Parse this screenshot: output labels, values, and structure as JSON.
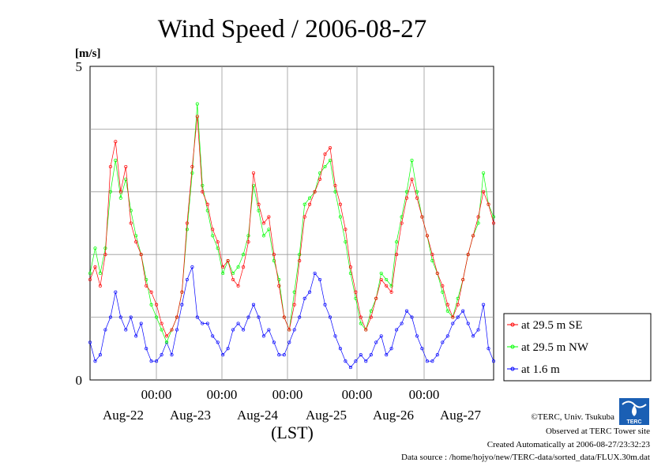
{
  "chart_data": {
    "type": "line",
    "title": "Wind Speed / 2006-08-27",
    "unit_label": "[m/s]",
    "ylim": [
      0,
      5
    ],
    "yticks": [
      "0",
      "5"
    ],
    "ygrid": [
      1,
      2,
      3,
      4
    ],
    "x_time_ticks": [
      "00:00",
      "00:00",
      "00:00",
      "00:00",
      "00:00"
    ],
    "x_day_labels": [
      "Aug-22",
      "Aug-23",
      "Aug-24",
      "Aug-25",
      "Aug-26",
      "Aug-27"
    ],
    "xlabel": "(LST)",
    "grid": true,
    "legend_position": "right",
    "x_step_hours": 2,
    "x_start": "2006-08-21 11:00",
    "x_end": "2006-08-27 23:00",
    "series": [
      {
        "name": "at 29.5 m SE",
        "color": "#ff0000",
        "values": [
          1.6,
          1.8,
          1.5,
          2.0,
          3.4,
          3.8,
          3.0,
          3.4,
          2.5,
          2.2,
          2.0,
          1.5,
          1.4,
          1.2,
          0.9,
          0.7,
          0.8,
          1.0,
          1.4,
          2.5,
          3.4,
          4.2,
          3.0,
          2.8,
          2.4,
          2.2,
          1.8,
          1.9,
          1.6,
          1.5,
          1.8,
          2.2,
          3.3,
          2.8,
          2.5,
          2.6,
          2.0,
          1.5,
          1.0,
          0.8,
          1.2,
          1.9,
          2.6,
          2.8,
          3.0,
          3.2,
          3.6,
          3.7,
          3.1,
          2.8,
          2.4,
          1.8,
          1.4,
          1.0,
          0.8,
          1.0,
          1.3,
          1.6,
          1.5,
          1.4,
          2.0,
          2.5,
          2.9,
          3.2,
          2.9,
          2.6,
          2.3,
          2.0,
          1.7,
          1.5,
          1.2,
          1.0,
          1.2,
          1.6,
          2.0,
          2.3,
          2.6,
          3.0,
          2.8,
          2.5
        ]
      },
      {
        "name": "at 29.5 m NW",
        "color": "#00ff00",
        "values": [
          1.7,
          2.1,
          1.7,
          2.1,
          3.0,
          3.5,
          2.9,
          3.2,
          2.7,
          2.3,
          2.0,
          1.6,
          1.2,
          1.0,
          0.8,
          0.6,
          0.8,
          1.0,
          1.4,
          2.4,
          3.3,
          4.4,
          3.1,
          2.7,
          2.3,
          2.1,
          1.7,
          1.9,
          1.7,
          1.8,
          2.0,
          2.3,
          3.1,
          2.7,
          2.3,
          2.4,
          1.9,
          1.6,
          1.0,
          0.8,
          1.4,
          2.0,
          2.8,
          2.9,
          3.0,
          3.3,
          3.4,
          3.5,
          3.0,
          2.6,
          2.2,
          1.7,
          1.3,
          0.9,
          0.8,
          1.1,
          1.3,
          1.7,
          1.6,
          1.5,
          2.2,
          2.6,
          3.0,
          3.5,
          3.0,
          2.6,
          2.3,
          1.9,
          1.7,
          1.4,
          1.1,
          1.0,
          1.3,
          1.6,
          2.0,
          2.3,
          2.5,
          3.3,
          2.8,
          2.6
        ]
      },
      {
        "name": "at 1.6 m",
        "color": "#0000ff",
        "values": [
          0.6,
          0.3,
          0.4,
          0.8,
          1.0,
          1.4,
          1.0,
          0.8,
          1.0,
          0.7,
          0.9,
          0.5,
          0.3,
          0.3,
          0.4,
          0.6,
          0.4,
          0.8,
          1.2,
          1.6,
          1.8,
          1.0,
          0.9,
          0.9,
          0.7,
          0.6,
          0.4,
          0.5,
          0.8,
          0.9,
          0.8,
          1.0,
          1.2,
          1.0,
          0.7,
          0.8,
          0.6,
          0.4,
          0.4,
          0.6,
          0.8,
          1.0,
          1.3,
          1.4,
          1.7,
          1.6,
          1.2,
          1.0,
          0.7,
          0.5,
          0.3,
          0.2,
          0.3,
          0.4,
          0.3,
          0.4,
          0.6,
          0.7,
          0.4,
          0.5,
          0.8,
          0.9,
          1.1,
          1.0,
          0.7,
          0.5,
          0.3,
          0.3,
          0.4,
          0.6,
          0.7,
          0.9,
          1.0,
          1.1,
          0.9,
          0.7,
          0.8,
          1.2,
          0.5,
          0.3
        ]
      }
    ]
  },
  "footer": {
    "credit": "©TERC, Univ. Tsukuba",
    "observed": "Observed at TERC Tower site",
    "created": "Created Automatically at 2006-08-27/23:32:23",
    "source": "Data source : /home/hojyo/new/TERC-data/sorted_data/FLUX.30m.dat"
  },
  "logo": {
    "text": "TERC",
    "color": "#1a5fb4"
  }
}
